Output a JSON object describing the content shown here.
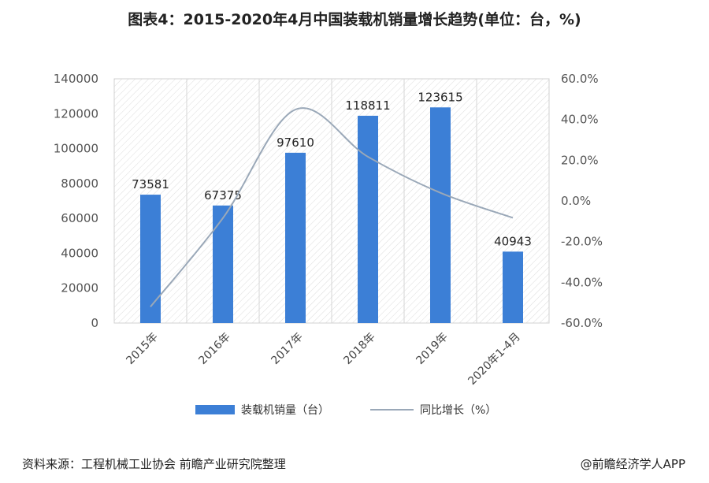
{
  "title": "图表4：2015-2020年4月中国装载机销量增长趋势(单位：台，%)",
  "source_note": "资料来源：工程机械工业协会 前瞻产业研究院整理",
  "watermark_credit": "@前瞻经济学人APP",
  "chart_data": {
    "type": "bar",
    "categories": [
      "2015年",
      "2016年",
      "2017年",
      "2018年",
      "2019年",
      "2020年1-4月"
    ],
    "series": [
      {
        "name": "装载机销量（台）",
        "type": "bar",
        "axis": "left",
        "values": [
          73581,
          67375,
          97610,
          118811,
          123615,
          40943
        ],
        "color": "#3c7fd6"
      },
      {
        "name": "同比增长（%）",
        "type": "line",
        "axis": "right",
        "values": [
          -52.0,
          -8.4,
          44.9,
          21.7,
          4.0,
          -8.3
        ],
        "color": "#9aa8b8"
      }
    ],
    "y_left": {
      "min": 0,
      "max": 140000,
      "ticks": [
        "0",
        "20000",
        "40000",
        "60000",
        "80000",
        "100000",
        "120000",
        "140000"
      ]
    },
    "y_right": {
      "min": -60,
      "max": 60,
      "ticks": [
        "-60.0%",
        "-40.0%",
        "-20.0%",
        "0.0%",
        "20.0%",
        "40.0%",
        "60.0%"
      ]
    },
    "data_labels": [
      "73581",
      "67375",
      "97610",
      "118811",
      "123615",
      "40943"
    ],
    "grid": true,
    "legend": "bottom"
  }
}
